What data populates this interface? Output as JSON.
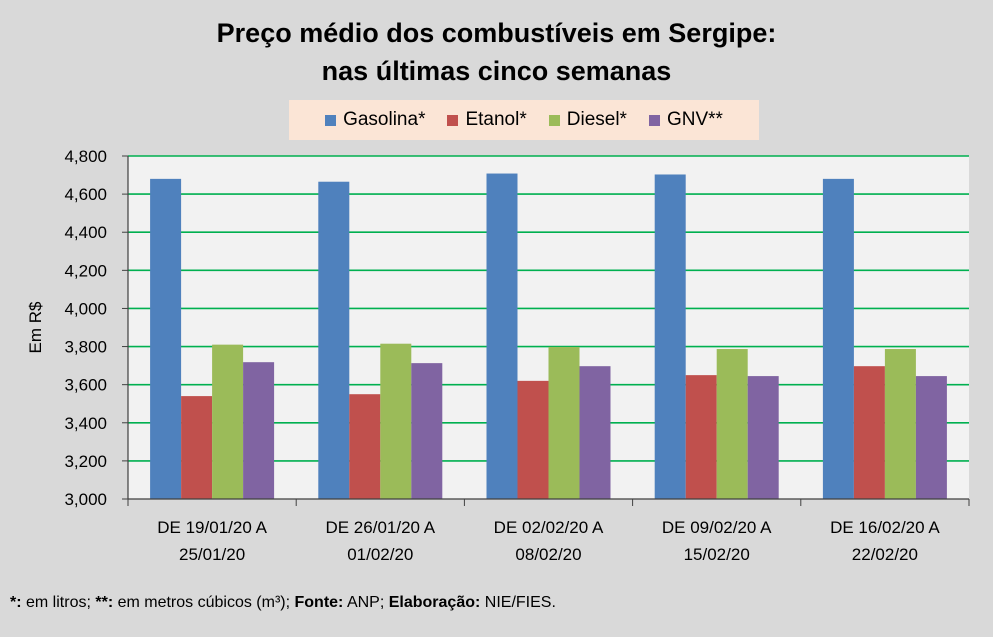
{
  "chart_data": {
    "type": "bar",
    "title_lines": [
      "Preço médio dos combustíveis em Sergipe:",
      "nas últimas cinco semanas"
    ],
    "ylabel": "Em R$",
    "ylim": [
      3.0,
      4.8
    ],
    "yticks": [
      "3,000",
      "3,200",
      "3,400",
      "3,600",
      "3,800",
      "4,000",
      "4,200",
      "4,400",
      "4,600",
      "4,800"
    ],
    "categories": [
      [
        "DE 19/01/20 A",
        "25/01/20"
      ],
      [
        "DE 26/01/20 A",
        "01/02/20"
      ],
      [
        "DE 02/02/20 A",
        "08/02/20"
      ],
      [
        "DE 09/02/20 A",
        "15/02/20"
      ],
      [
        "DE 16/02/20 A",
        "22/02/20"
      ]
    ],
    "series": [
      {
        "name": "Gasolina*",
        "color": "#4f81bd",
        "values": [
          4.68,
          4.665,
          4.708,
          4.703,
          4.68
        ]
      },
      {
        "name": "Etanol*",
        "color": "#c0504d",
        "values": [
          3.54,
          3.55,
          3.62,
          3.65,
          3.697
        ]
      },
      {
        "name": "Diesel*",
        "color": "#9bbb59",
        "values": [
          3.81,
          3.815,
          3.798,
          3.787,
          3.787
        ]
      },
      {
        "name": "GNV**",
        "color": "#8064a2",
        "values": [
          3.718,
          3.713,
          3.697,
          3.645,
          3.645
        ]
      }
    ],
    "grid": true,
    "gridcolor": "#00b050",
    "legend_position": "top"
  },
  "footnote": {
    "part1_bold": "*:",
    "part2": " em litros; ",
    "part3_bold": "**:",
    "part4": " em metros cúbicos (m³); ",
    "part5_bold": "Fonte:",
    "part6": " ANP; ",
    "part7_bold": "Elaboração:",
    "part8": " NIE/FIES."
  }
}
